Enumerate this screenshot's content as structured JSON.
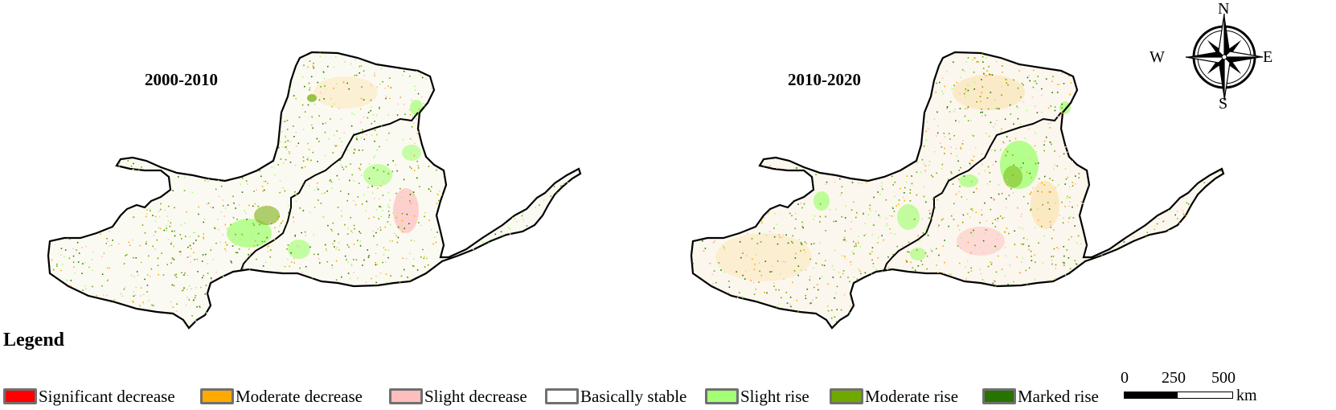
{
  "panels": [
    {
      "title": "2000-2010"
    },
    {
      "title": "2010-2020"
    }
  ],
  "legend": {
    "title": "Legend",
    "items": [
      {
        "label": "Significant decrease",
        "color": "#ff0000"
      },
      {
        "label": "Moderate decrease",
        "color": "#ffaa00"
      },
      {
        "label": "Slight decrease",
        "color": "#ffbebe"
      },
      {
        "label": "Basically stable",
        "color": "#ffffff"
      },
      {
        "label": "Slight rise",
        "color": "#a3ff73"
      },
      {
        "label": "Moderate rise",
        "color": "#70a800"
      },
      {
        "label": "Marked rise",
        "color": "#267300"
      }
    ]
  },
  "scale_bar": {
    "ticks": [
      "0",
      "250",
      "500"
    ],
    "unit": "km"
  },
  "compass": {
    "north": "N",
    "south": "S",
    "east": "E",
    "west": "W"
  }
}
